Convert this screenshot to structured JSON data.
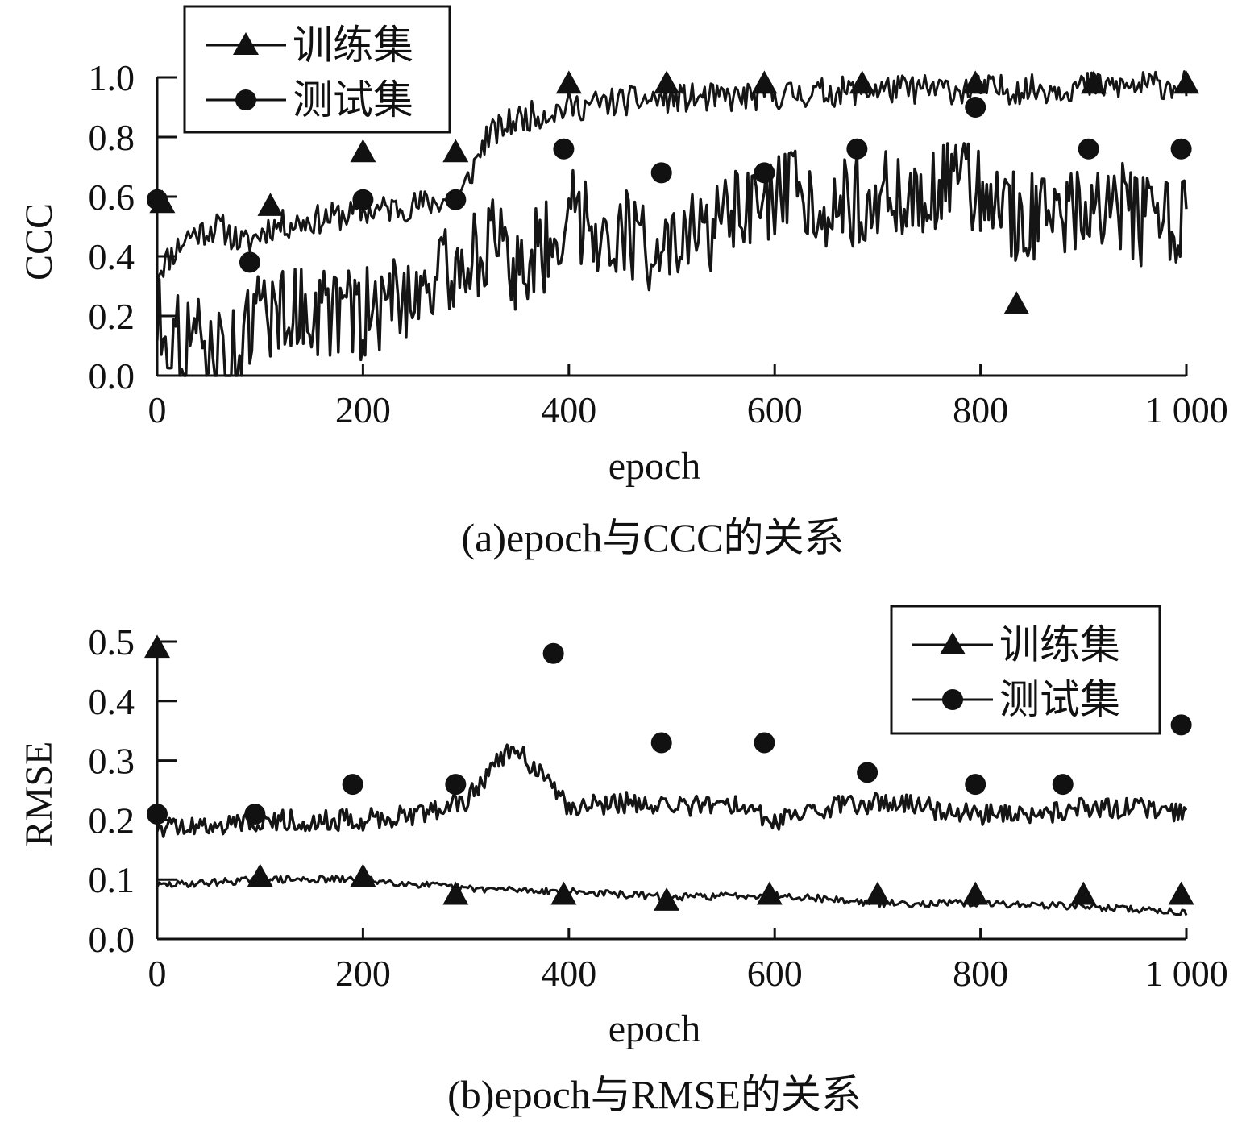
{
  "chart_data": [
    {
      "id": "a",
      "type": "line",
      "caption": "(a)epoch与CCC的关系",
      "xlabel": "epoch",
      "ylabel": "CCC",
      "xlim": [
        0,
        1000
      ],
      "ylim": [
        0,
        1.0
      ],
      "xticks": [
        0,
        200,
        400,
        600,
        800,
        1000
      ],
      "xtick_labels": [
        "0",
        "200",
        "400",
        "600",
        "800",
        "1 000"
      ],
      "yticks": [
        0,
        0.2,
        0.4,
        0.6,
        0.8,
        1.0
      ],
      "ytick_labels": [
        "0.0",
        "0.2",
        "0.4",
        "0.6",
        "0.8",
        "1.0"
      ],
      "legend_position": "top-left",
      "grid": false,
      "series": [
        {
          "name": "训练集",
          "marker": "triangle",
          "x": [
            0,
            30,
            60,
            85,
            110,
            150,
            200,
            250,
            295,
            320,
            350,
            400,
            450,
            500,
            550,
            600,
            650,
            700,
            750,
            800,
            850,
            900,
            950,
            1000
          ],
          "y": [
            0.35,
            0.47,
            0.5,
            0.44,
            0.5,
            0.52,
            0.55,
            0.57,
            0.6,
            0.8,
            0.86,
            0.9,
            0.92,
            0.93,
            0.93,
            0.94,
            0.95,
            0.96,
            0.96,
            0.96,
            0.96,
            0.97,
            0.97,
            0.98
          ],
          "marker_x": [
            5,
            110,
            200,
            290,
            400,
            495,
            590,
            685,
            795,
            835,
            910,
            1000
          ],
          "marker_y": [
            0.58,
            0.57,
            0.75,
            0.75,
            0.98,
            0.98,
            0.98,
            0.98,
            0.98,
            0.24,
            0.98,
            0.98
          ]
        },
        {
          "name": "测试集",
          "marker": "circle",
          "x": [
            0,
            20,
            50,
            70,
            85,
            100,
            150,
            200,
            250,
            290,
            320,
            350,
            380,
            400,
            430,
            470,
            500,
            540,
            580,
            620,
            660,
            700,
            740,
            780,
            800,
            830,
            870,
            900,
            940,
            970,
            1000
          ],
          "y": [
            0.2,
            0.12,
            0.1,
            0.05,
            0.12,
            0.22,
            0.22,
            0.2,
            0.3,
            0.35,
            0.45,
            0.35,
            0.45,
            0.55,
            0.5,
            0.45,
            0.4,
            0.5,
            0.55,
            0.6,
            0.58,
            0.6,
            0.6,
            0.65,
            0.62,
            0.55,
            0.5,
            0.6,
            0.55,
            0.5,
            0.5
          ],
          "marker_x": [
            0,
            90,
            200,
            290,
            395,
            490,
            590,
            680,
            795,
            905,
            995
          ],
          "marker_y": [
            0.59,
            0.38,
            0.59,
            0.59,
            0.76,
            0.68,
            0.68,
            0.76,
            0.9,
            0.76,
            0.76
          ]
        }
      ]
    },
    {
      "id": "b",
      "type": "line",
      "caption": "(b)epoch与RMSE的关系",
      "xlabel": "epoch",
      "ylabel": "RMSE",
      "xlim": [
        0,
        1000
      ],
      "ylim": [
        0,
        0.5
      ],
      "xticks": [
        0,
        200,
        400,
        600,
        800,
        1000
      ],
      "xtick_labels": [
        "0",
        "200",
        "400",
        "600",
        "800",
        "1 000"
      ],
      "yticks": [
        0,
        0.1,
        0.2,
        0.3,
        0.4,
        0.5
      ],
      "ytick_labels": [
        "0.0",
        "0.1",
        "0.2",
        "0.3",
        "0.4",
        "0.5"
      ],
      "legend_position": "top-right",
      "grid": false,
      "series": [
        {
          "name": "训练集",
          "marker": "triangle",
          "x": [
            0,
            100,
            200,
            300,
            400,
            500,
            600,
            700,
            800,
            900,
            1000
          ],
          "y": [
            0.09,
            0.1,
            0.1,
            0.085,
            0.08,
            0.07,
            0.075,
            0.06,
            0.06,
            0.055,
            0.045
          ],
          "marker_x": [
            0,
            100,
            200,
            290,
            395,
            495,
            595,
            700,
            795,
            900,
            995
          ],
          "marker_y": [
            0.49,
            0.105,
            0.105,
            0.075,
            0.075,
            0.065,
            0.075,
            0.075,
            0.075,
            0.075,
            0.075
          ]
        },
        {
          "name": "测试集",
          "marker": "circle",
          "x": [
            0,
            50,
            100,
            150,
            200,
            250,
            300,
            330,
            350,
            370,
            400,
            450,
            500,
            550,
            600,
            650,
            700,
            750,
            800,
            850,
            900,
            950,
            1000
          ],
          "y": [
            0.19,
            0.19,
            0.2,
            0.2,
            0.2,
            0.21,
            0.23,
            0.3,
            0.32,
            0.28,
            0.22,
            0.23,
            0.22,
            0.23,
            0.2,
            0.22,
            0.23,
            0.22,
            0.21,
            0.21,
            0.22,
            0.22,
            0.21
          ],
          "marker_x": [
            0,
            95,
            190,
            290,
            385,
            490,
            590,
            690,
            795,
            880,
            995
          ],
          "marker_y": [
            0.21,
            0.21,
            0.26,
            0.26,
            0.48,
            0.33,
            0.33,
            0.28,
            0.26,
            0.26,
            0.36
          ]
        }
      ]
    }
  ]
}
